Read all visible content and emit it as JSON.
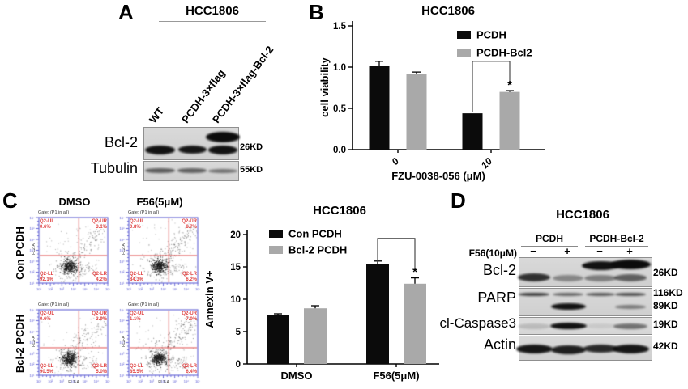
{
  "panel_a": {
    "label": "A",
    "cell_line": "HCC1806",
    "lanes": [
      "WT",
      "PCDH-3×flag",
      "PCDH-3×flag-Bcl-2"
    ],
    "rows": [
      {
        "protein": "Bcl-2",
        "mw": "26KD"
      },
      {
        "protein": "Tubulin",
        "mw": "55KD"
      }
    ]
  },
  "panel_b": {
    "label": "B"
  },
  "panel_c": {
    "label": "C",
    "columns": [
      "DMSO",
      "F56(5μM)"
    ],
    "row_groups": [
      "Con PCDH",
      "Bcl-2 PCDH"
    ],
    "gate_text": "Gate: (P1 in all)",
    "x_axis": "FL1-A",
    "y_axis": "FL2-A",
    "quadrant_names": {
      "ul": "Q2-UL",
      "ur": "Q2-UR",
      "ll": "Q2-LL",
      "lr": "Q2-LR"
    },
    "plots": [
      {
        "group": "Con PCDH",
        "treatment": "DMSO",
        "ul": "0.6%",
        "ur": "3.1%",
        "ll": "92.1%",
        "lr": "4.2%"
      },
      {
        "group": "Con PCDH",
        "treatment": "F56(5μM)",
        "ul": "0.8%",
        "ur": "8.7%",
        "ll": "84.3%",
        "lr": "6.2%"
      },
      {
        "group": "Bcl-2 PCDH",
        "treatment": "DMSO",
        "ul": "0.6%",
        "ur": "3.9%",
        "ll": "90.5%",
        "lr": "5.0%"
      },
      {
        "group": "Bcl-2 PCDH",
        "treatment": "F56(5μM)",
        "ul": "1.1%",
        "ur": "7.0%",
        "ll": "85.5%",
        "lr": "6.4%"
      }
    ]
  },
  "panel_d": {
    "label": "D",
    "title": "HCC1806",
    "groups": [
      "PCDH",
      "PCDH-Bcl-2"
    ],
    "treatment_label": "F56(10μM)",
    "lane_signs": [
      "−",
      "+",
      "−",
      "+"
    ],
    "rows": [
      {
        "protein": "Bcl-2",
        "mws": [
          "26KD"
        ]
      },
      {
        "protein": "PARP",
        "mws": [
          "116KD",
          "89KD"
        ]
      },
      {
        "protein": "cl-Caspase3",
        "mws": [
          "19KD"
        ]
      },
      {
        "protein": "Actin",
        "mws": [
          "42KD"
        ]
      }
    ]
  },
  "chart_data": [
    {
      "id": "cell-viability",
      "type": "bar",
      "title": "HCC1806",
      "categories": [
        "0",
        "10"
      ],
      "series": [
        {
          "name": "PCDH",
          "color": "#0b0b0b",
          "values": [
            1.01,
            0.44
          ],
          "errors": [
            0.06,
            0
          ]
        },
        {
          "name": "PCDH-Bcl2",
          "color": "#a9a9a9",
          "values": [
            0.92,
            0.7
          ],
          "errors": [
            0.02,
            0.015
          ]
        }
      ],
      "xlabel": "FZU-0038-056 (μM)",
      "ylabel": "cell viability",
      "ylim": [
        0,
        1.5
      ],
      "yticks": [
        0,
        0.5,
        1,
        1.5
      ],
      "ytick_labels": [
        "0.0",
        "0.5",
        "1.0",
        "1.5"
      ],
      "legend_position": "top-right",
      "significance": {
        "label": "*",
        "category": "10",
        "compares": [
          "PCDH",
          "PCDH-Bcl2"
        ]
      }
    },
    {
      "id": "annexin-v",
      "type": "bar",
      "title": "HCC1806",
      "categories": [
        "DMSO",
        "F56(5μM)"
      ],
      "series": [
        {
          "name": "Con PCDH",
          "color": "#0b0b0b",
          "values": [
            7.5,
            15.5
          ],
          "errors": [
            0.25,
            0.4
          ]
        },
        {
          "name": "Bcl-2 PCDH",
          "color": "#a9a9a9",
          "values": [
            8.6,
            12.4
          ],
          "errors": [
            0.4,
            0.9
          ]
        }
      ],
      "xlabel": "",
      "ylabel": "Annexin V+",
      "ylim": [
        0,
        20
      ],
      "yticks": [
        0,
        5,
        10,
        15,
        20
      ],
      "ytick_labels": [
        "0",
        "5",
        "10",
        "15",
        "20"
      ],
      "legend_position": "top-left",
      "significance": {
        "label": "*",
        "category": "F56(5μM)",
        "compares": [
          "Con PCDH",
          "Bcl-2 PCDH"
        ]
      }
    }
  ],
  "colors": {
    "bar_black": "#0b0b0b",
    "bar_gray": "#a9a9a9",
    "flow_frame": "#6b6bd6",
    "flow_cross": "#e05050",
    "flow_text": "#e04545",
    "flow_ticks": "#4a4ad0",
    "blot_bg": "#d4d4d4"
  }
}
